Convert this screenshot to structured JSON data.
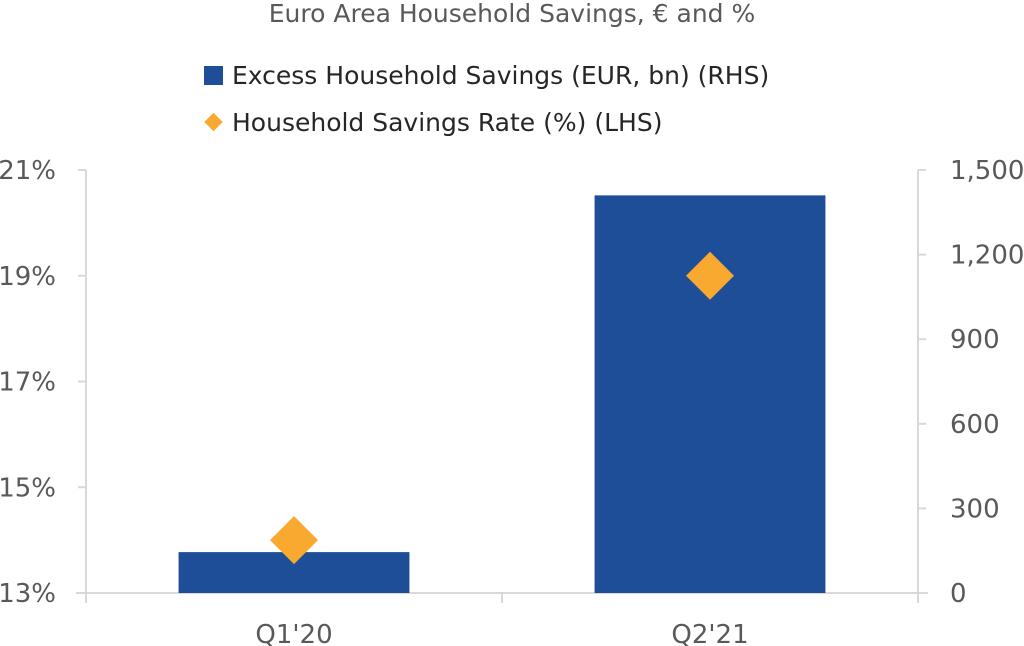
{
  "chart_data": {
    "type": "bar",
    "title": "Euro Area Household Savings, € and %",
    "categories": [
      "Q1'20",
      "Q2'21"
    ],
    "series": [
      {
        "name": "Excess Household Savings (EUR, bn) (RHS)",
        "type": "bar",
        "axis": "right",
        "color": "#1f4e99",
        "values": [
          145,
          1410
        ]
      },
      {
        "name": "Household Savings Rate (%) (LHS)",
        "type": "scatter",
        "marker": "diamond",
        "axis": "left",
        "color": "#f9a930",
        "values": [
          14.0,
          19.0
        ]
      }
    ],
    "y_left": {
      "lim": [
        13,
        21
      ],
      "ticks": [
        13,
        15,
        17,
        19,
        21
      ],
      "tick_labels": [
        "13%",
        "15%",
        "17%",
        "19%",
        "21%"
      ]
    },
    "y_right": {
      "lim": [
        0,
        1500
      ],
      "ticks": [
        0,
        300,
        600,
        900,
        1200,
        1500
      ],
      "tick_labels": [
        "0",
        "300",
        "600",
        "900",
        "1,200",
        "1,500"
      ]
    },
    "legend_position": "top-center",
    "grid": false
  }
}
